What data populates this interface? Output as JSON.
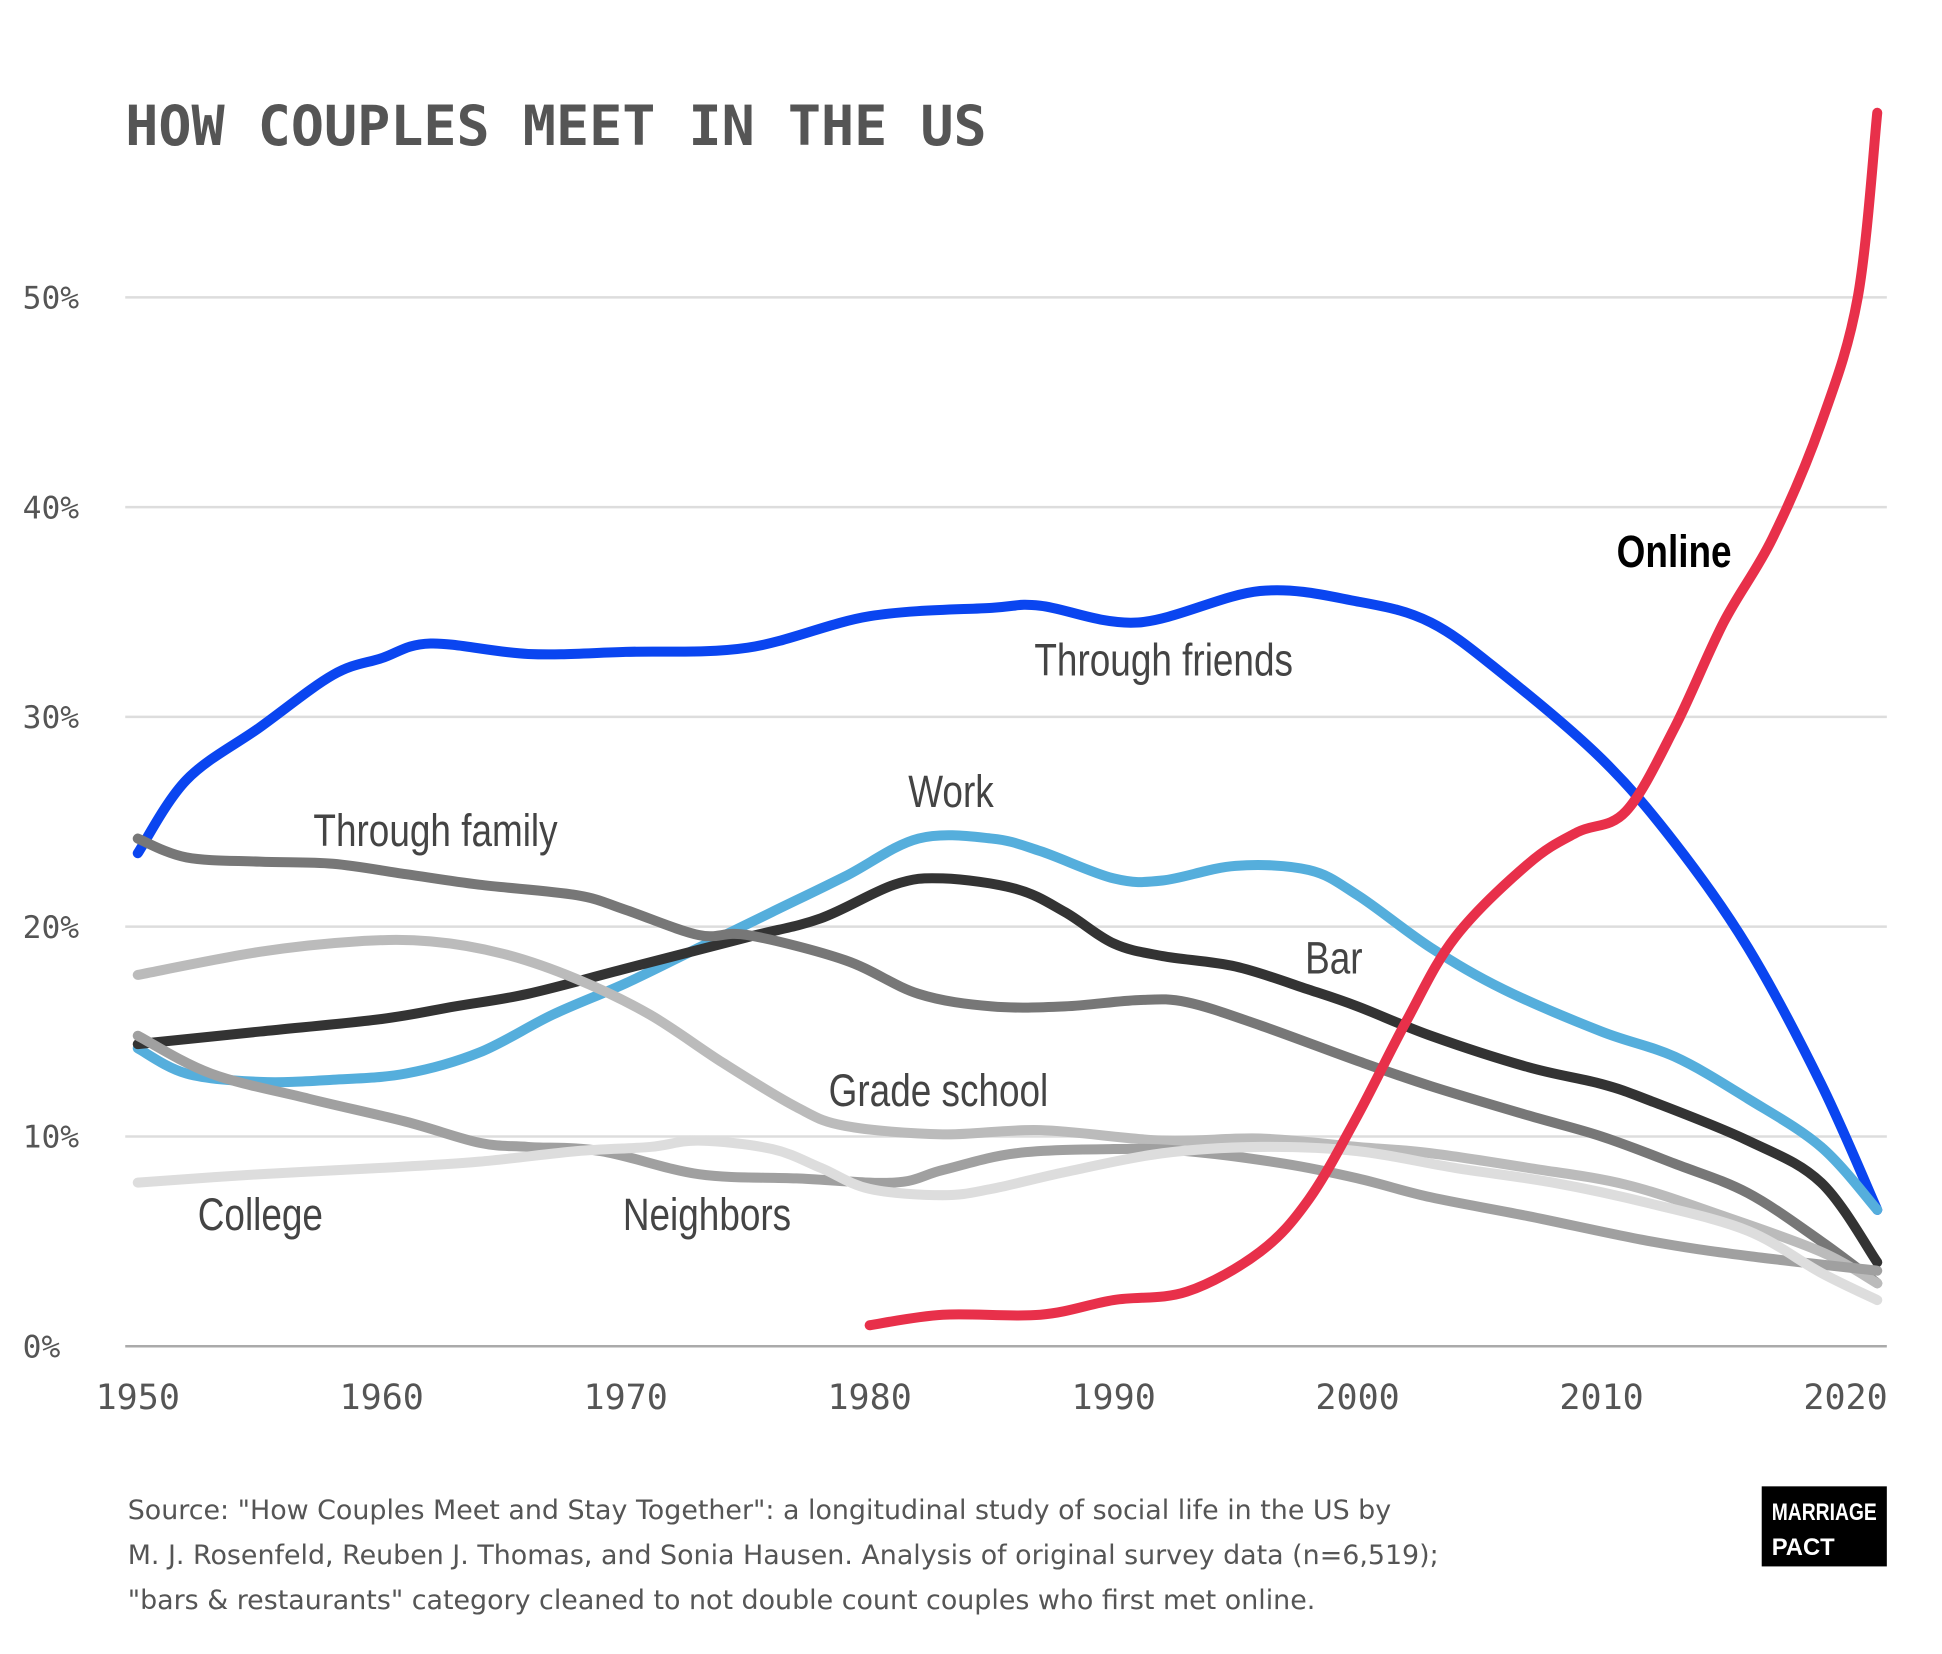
{
  "chart_data": {
    "type": "line",
    "title": "HOW COUPLES MEET IN THE US",
    "xlim": [
      1950,
      2022
    ],
    "ylim": [
      0,
      60
    ],
    "xticks": [
      1950,
      1960,
      1970,
      1980,
      1990,
      2000,
      2010,
      2020
    ],
    "yticks": [
      {
        "value": 0,
        "label": "0%"
      },
      {
        "value": 10,
        "label": "10%"
      },
      {
        "value": 20,
        "label": "20%"
      },
      {
        "value": 30,
        "label": "30%"
      },
      {
        "value": 40,
        "label": "40%"
      },
      {
        "value": 50,
        "label": "50%"
      }
    ],
    "grid": true,
    "series": [
      {
        "name": "Through friends",
        "color": "#0a45f0",
        "x": [
          1950,
          1952,
          1955,
          1958,
          1960,
          1962,
          1966,
          1970,
          1975,
          1980,
          1985,
          1987,
          1991,
          1996,
          2000,
          2003,
          2006,
          2010,
          2013,
          2016,
          2019,
          2021.3
        ],
        "values": [
          23.5,
          27,
          29.5,
          32,
          32.8,
          33.5,
          33.0,
          33.1,
          33.3,
          34.8,
          35.2,
          35.3,
          34.5,
          36.0,
          35.5,
          34.5,
          32,
          28,
          24,
          19,
          12.5,
          6.5
        ]
      },
      {
        "name": "Work",
        "color": "#55aedc",
        "x": [
          1950,
          1952,
          1955,
          1958,
          1961,
          1964,
          1967,
          1970,
          1973,
          1976,
          1979,
          1982,
          1985,
          1987,
          1990,
          1992,
          1995,
          1998,
          2000,
          2003,
          2006,
          2010,
          2013,
          2016,
          2019,
          2021.3
        ],
        "values": [
          14.2,
          13,
          12.6,
          12.7,
          13,
          14,
          15.8,
          17.3,
          19,
          20.7,
          22.4,
          24.2,
          24.2,
          23.6,
          22.3,
          22.2,
          22.9,
          22.7,
          21.5,
          19,
          17,
          15,
          13.8,
          11.8,
          9.5,
          6.5
        ]
      },
      {
        "name": "Bar",
        "color": "#333333",
        "x": [
          1950,
          1955,
          1960,
          1963,
          1966,
          1970,
          1975,
          1978,
          1981,
          1983,
          1986,
          1988,
          1990,
          1992,
          1995,
          1998,
          2000,
          2003,
          2007,
          2010,
          2012,
          2016,
          2019,
          2021.3
        ],
        "values": [
          14.4,
          15,
          15.6,
          16.2,
          16.8,
          18,
          19.5,
          20.4,
          22,
          22.3,
          21.8,
          20.7,
          19.2,
          18.6,
          18.1,
          17,
          16.2,
          14.8,
          13.3,
          12.5,
          11.7,
          9.8,
          7.8,
          4
        ]
      },
      {
        "name": "Through family",
        "color": "#777777",
        "x": [
          1950,
          1952,
          1955,
          1958,
          1961,
          1964,
          1968,
          1970,
          1973,
          1975,
          1979,
          1982,
          1985,
          1988,
          1991,
          1993,
          1996,
          2000,
          2003,
          2007,
          2010,
          2013,
          2016,
          2019,
          2021.3
        ],
        "values": [
          24.2,
          23.3,
          23.1,
          23,
          22.5,
          22,
          21.5,
          20.8,
          19.6,
          19.6,
          18.4,
          16.8,
          16.2,
          16.2,
          16.5,
          16.4,
          15.3,
          13.6,
          12.4,
          11,
          10,
          8.7,
          7.3,
          5,
          3
        ]
      },
      {
        "name": "Grade school",
        "color": "#bbbbbb",
        "x": [
          1950,
          1955,
          1959,
          1962,
          1965,
          1968,
          1971,
          1974,
          1977,
          1979,
          1983,
          1987,
          1992,
          1996,
          2000,
          2003,
          2007,
          2011,
          2015,
          2019,
          2021.3
        ],
        "values": [
          17.7,
          18.8,
          19.3,
          19.3,
          18.7,
          17.5,
          15.8,
          13.5,
          11.4,
          10.5,
          10.1,
          10.3,
          9.8,
          9.9,
          9.5,
          9.2,
          8.5,
          7.7,
          6.2,
          4.5,
          3
        ]
      },
      {
        "name": "Neighbors",
        "color": "#a0a0a0",
        "x": [
          1950,
          1953,
          1957,
          1961,
          1964,
          1966,
          1969,
          1973,
          1977,
          1981,
          1983,
          1986,
          1990,
          1993,
          1997,
          2000,
          2003,
          2007,
          2012,
          2016,
          2021.3
        ],
        "values": [
          14.8,
          13,
          11.8,
          10.7,
          9.7,
          9.5,
          9.3,
          8.2,
          8,
          7.8,
          8.4,
          9.2,
          9.4,
          9.3,
          8.7,
          8,
          7.1,
          6.2,
          5,
          4.3,
          3.6
        ]
      },
      {
        "name": "College",
        "color": "#dddddd",
        "x": [
          1950,
          1955,
          1960,
          1964,
          1968,
          1971,
          1973,
          1976,
          1978,
          1980,
          1983,
          1985,
          1988,
          1992,
          1996,
          2000,
          2004,
          2008,
          2012,
          2016,
          2019,
          2021.3
        ],
        "values": [
          7.8,
          8.2,
          8.5,
          8.8,
          9.3,
          9.5,
          9.8,
          9.4,
          8.5,
          7.5,
          7.2,
          7.5,
          8.3,
          9.2,
          9.5,
          9.3,
          8.5,
          7.8,
          6.8,
          5.5,
          3.5,
          2.2
        ]
      },
      {
        "name": "Online",
        "color": "#e8304a",
        "x": [
          1980,
          1983,
          1987,
          1990,
          1993,
          1996,
          1998,
          2000,
          2002,
          2004,
          2007,
          2009,
          2011,
          2013,
          2015,
          2017,
          2019,
          2020.5,
          2021.3
        ],
        "values": [
          1,
          1.5,
          1.5,
          2.2,
          2.6,
          4.5,
          7,
          11,
          15.5,
          19.5,
          23,
          24.5,
          25.5,
          29.5,
          34.5,
          38.5,
          44,
          50,
          58.8
        ]
      }
    ],
    "source": [
      "Source: \"How Couples Meet and Stay Together\": a longitudinal study of social life in the US by",
      "M. J. Rosenfeld, Reuben J. Thomas, and Sonia Hausen. Analysis of original survey data (n=6,519);",
      "\"bars & restaurants\" category cleaned to not double count couples who first met online."
    ],
    "logo": [
      "MARRIAGE",
      "PACT"
    ]
  }
}
